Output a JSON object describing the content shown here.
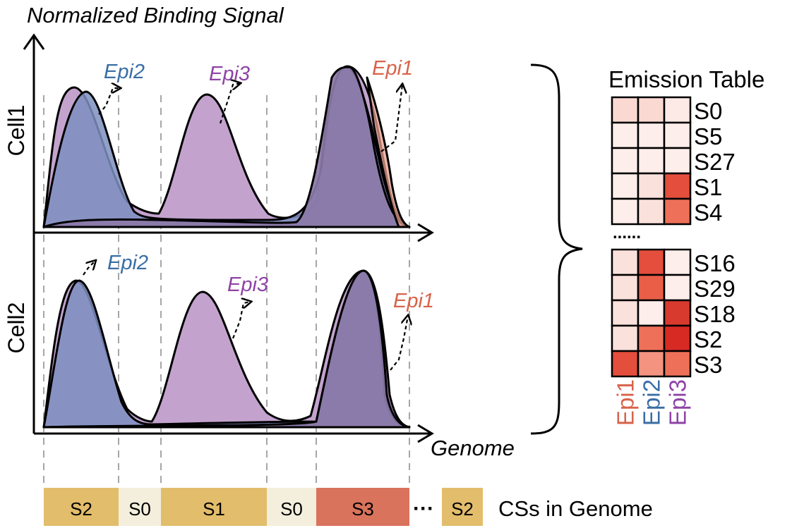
{
  "figure": {
    "y_axis_label": "Normalized Binding Signal",
    "x_axis_label": "Genome"
  },
  "panels": [
    {
      "label": "Cell1",
      "annotations": [
        {
          "text": "Epi2",
          "color": "#3a6ea5"
        },
        {
          "text": "Epi3",
          "color": "#8e44a6"
        },
        {
          "text": "Epi1",
          "color": "#d8634a"
        }
      ]
    },
    {
      "label": "Cell2",
      "annotations": [
        {
          "text": "Epi2",
          "color": "#3a6ea5"
        },
        {
          "text": "Epi3",
          "color": "#8e44a6"
        },
        {
          "text": "Epi1",
          "color": "#d8634a"
        }
      ]
    }
  ],
  "emission_table": {
    "title": "Emission Table",
    "ellipsis": "......",
    "columns": [
      {
        "label": "Epi1",
        "color": "#d8634a"
      },
      {
        "label": "Epi2",
        "color": "#3a6ea5"
      },
      {
        "label": "Epi3",
        "color": "#8e44a6"
      }
    ],
    "top_group": [
      {
        "state": "S0",
        "colors": [
          "#fbd9d3",
          "#fbd9d3",
          "#fde9e5"
        ]
      },
      {
        "state": "S5",
        "colors": [
          "#fdeeeb",
          "#fdeeeb",
          "#fdeeeb"
        ]
      },
      {
        "state": "S27",
        "colors": [
          "#fdeeeb",
          "#fdeeeb",
          "#fdeeeb"
        ]
      },
      {
        "state": "S1",
        "colors": [
          "#fdeeeb",
          "#fbe1dc",
          "#e44e3c"
        ]
      },
      {
        "state": "S4",
        "colors": [
          "#fdeeeb",
          "#fbe1dc",
          "#ee7058"
        ]
      }
    ],
    "bottom_group": [
      {
        "state": "S16",
        "colors": [
          "#fbe1dc",
          "#e44e3c",
          "#fdeeeb"
        ]
      },
      {
        "state": "S29",
        "colors": [
          "#fbe1dc",
          "#ea5e48",
          "#fdeeeb"
        ]
      },
      {
        "state": "S18",
        "colors": [
          "#fbe1dc",
          "#fdeeeb",
          "#d93a2e"
        ]
      },
      {
        "state": "S2",
        "colors": [
          "#fbe1dc",
          "#ee7058",
          "#d62a22"
        ]
      },
      {
        "state": "S3",
        "colors": [
          "#e44e3c",
          "#f39380",
          "#ee7058"
        ]
      }
    ]
  },
  "genome_states": {
    "segments": [
      {
        "label": "S2",
        "color": "#e2bd6b"
      },
      {
        "label": "S0",
        "color": "#f3efdc"
      },
      {
        "label": "S1",
        "color": "#e2bd6b"
      },
      {
        "label": "S0",
        "color": "#f3efdc"
      },
      {
        "label": "S3",
        "color": "#d9735c"
      }
    ],
    "ellipsis": "···",
    "extra_segment": {
      "label": "S2",
      "color": "#e2bd6b"
    },
    "caption": "CSs in Genome"
  }
}
